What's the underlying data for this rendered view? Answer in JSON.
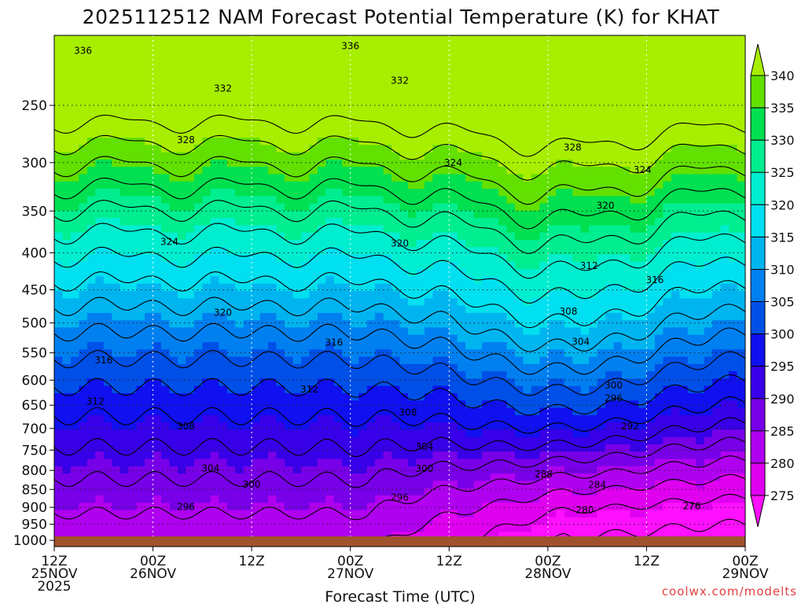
{
  "chart_data": {
    "type": "heatmap",
    "title": "2025112512 NAM Forecast Potential Temperature (K) for KHAT",
    "xlabel": "Forecast Time (UTC)",
    "ylabel": "",
    "x_ticks": [
      {
        "hour": 0,
        "lines": [
          "12Z",
          "25NOV",
          "2025"
        ]
      },
      {
        "hour": 12,
        "lines": [
          "00Z",
          "26NOV"
        ]
      },
      {
        "hour": 24,
        "lines": [
          "12Z"
        ]
      },
      {
        "hour": 36,
        "lines": [
          "00Z",
          "27NOV"
        ]
      },
      {
        "hour": 48,
        "lines": [
          "12Z"
        ]
      },
      {
        "hour": 60,
        "lines": [
          "00Z",
          "28NOV"
        ]
      },
      {
        "hour": 72,
        "lines": [
          "12Z"
        ]
      },
      {
        "hour": 84,
        "lines": [
          "00Z",
          "29NOV"
        ]
      }
    ],
    "xlim": [
      0,
      84
    ],
    "y_ticks": [
      250,
      300,
      350,
      400,
      450,
      500,
      550,
      600,
      650,
      700,
      750,
      800,
      850,
      900,
      950,
      1000
    ],
    "ylim": [
      1020,
      200
    ],
    "y_scale": "log-pressure",
    "grid": true,
    "colorbar": {
      "ticks": [
        340,
        335,
        330,
        325,
        320,
        315,
        310,
        305,
        300,
        295,
        290,
        285,
        280,
        275
      ],
      "colors": [
        "#a8ee00",
        "#62e000",
        "#00e050",
        "#00ee90",
        "#00eed0",
        "#00e0f0",
        "#00b4f0",
        "#0080f0",
        "#0050e8",
        "#1010f0",
        "#3800e8",
        "#7800e8",
        "#b000f0",
        "#e000f0",
        "#ff10ff"
      ],
      "placement": "right"
    },
    "contour_interval": 4,
    "contour_labels": [
      {
        "value": "336",
        "hour": 3.5,
        "p": 210
      },
      {
        "value": "336",
        "hour": 36,
        "p": 207
      },
      {
        "value": "332",
        "hour": 20.5,
        "p": 237
      },
      {
        "value": "332",
        "hour": 42,
        "p": 231
      },
      {
        "value": "328",
        "hour": 16,
        "p": 279
      },
      {
        "value": "328",
        "hour": 63,
        "p": 286
      },
      {
        "value": "324",
        "hour": 48.5,
        "p": 300
      },
      {
        "value": "324",
        "hour": 71.5,
        "p": 307
      },
      {
        "value": "324",
        "hour": 14,
        "p": 386
      },
      {
        "value": "320",
        "hour": 67,
        "p": 344
      },
      {
        "value": "320",
        "hour": 42,
        "p": 388
      },
      {
        "value": "320",
        "hour": 20.5,
        "p": 484
      },
      {
        "value": "316",
        "hour": 34,
        "p": 532
      },
      {
        "value": "316",
        "hour": 6,
        "p": 563
      },
      {
        "value": "316",
        "hour": 73,
        "p": 436
      },
      {
        "value": "312",
        "hour": 65,
        "p": 417
      },
      {
        "value": "312",
        "hour": 31,
        "p": 618
      },
      {
        "value": "312",
        "hour": 5,
        "p": 642
      },
      {
        "value": "308",
        "hour": 62.5,
        "p": 482
      },
      {
        "value": "308",
        "hour": 43,
        "p": 665
      },
      {
        "value": "308",
        "hour": 16,
        "p": 695
      },
      {
        "value": "304",
        "hour": 64,
        "p": 531
      },
      {
        "value": "304",
        "hour": 45,
        "p": 742
      },
      {
        "value": "304",
        "hour": 19,
        "p": 795
      },
      {
        "value": "300",
        "hour": 68,
        "p": 610
      },
      {
        "value": "300",
        "hour": 45,
        "p": 796
      },
      {
        "value": "300",
        "hour": 24,
        "p": 837
      },
      {
        "value": "296",
        "hour": 68,
        "p": 636
      },
      {
        "value": "296",
        "hour": 42,
        "p": 872
      },
      {
        "value": "296",
        "hour": 16,
        "p": 899
      },
      {
        "value": "292",
        "hour": 70,
        "p": 695
      },
      {
        "value": "288",
        "hour": 59.5,
        "p": 810
      },
      {
        "value": "284",
        "hour": 66,
        "p": 838
      },
      {
        "value": "280",
        "hour": 64.5,
        "p": 908
      },
      {
        "value": "276",
        "hour": 77.5,
        "p": 897
      }
    ],
    "credit": "coolwx.com/modelts"
  }
}
